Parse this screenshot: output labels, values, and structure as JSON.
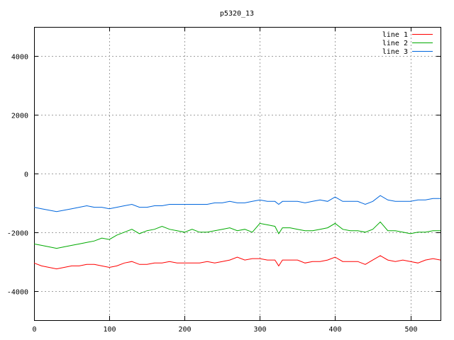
{
  "chart_data": {
    "type": "line",
    "title": "p5320_13",
    "xlabel": "",
    "ylabel": "",
    "xlim": [
      0,
      540
    ],
    "ylim": [
      -5000,
      5000
    ],
    "xticks": [
      0,
      100,
      200,
      300,
      400,
      500
    ],
    "yticks": [
      -4000,
      -2000,
      0,
      2000,
      4000
    ],
    "grid": true,
    "legend_position": "top-right",
    "x": [
      0,
      10,
      20,
      30,
      40,
      50,
      60,
      70,
      80,
      90,
      100,
      110,
      120,
      130,
      140,
      150,
      160,
      170,
      180,
      190,
      200,
      210,
      220,
      230,
      240,
      250,
      260,
      270,
      280,
      290,
      300,
      310,
      320,
      325,
      330,
      340,
      350,
      360,
      370,
      380,
      390,
      400,
      410,
      420,
      430,
      440,
      450,
      460,
      470,
      480,
      490,
      500,
      510,
      520,
      530,
      540
    ],
    "series": [
      {
        "name": "line 1",
        "color": "#ff0000",
        "values": [
          -3050,
          -3150,
          -3200,
          -3250,
          -3200,
          -3150,
          -3150,
          -3100,
          -3100,
          -3150,
          -3200,
          -3150,
          -3050,
          -3000,
          -3100,
          -3100,
          -3050,
          -3050,
          -3000,
          -3050,
          -3050,
          -3050,
          -3050,
          -3000,
          -3050,
          -3000,
          -2950,
          -2850,
          -2950,
          -2900,
          -2900,
          -2950,
          -2950,
          -3150,
          -2950,
          -2950,
          -2950,
          -3050,
          -3000,
          -3000,
          -2950,
          -2850,
          -3000,
          -3000,
          -3000,
          -3100,
          -2950,
          -2800,
          -2950,
          -3000,
          -2950,
          -3000,
          -3050,
          -2950,
          -2900,
          -2950
        ]
      },
      {
        "name": "line 2",
        "color": "#00aa00",
        "values": [
          -2400,
          -2450,
          -2500,
          -2550,
          -2500,
          -2450,
          -2400,
          -2350,
          -2300,
          -2200,
          -2250,
          -2100,
          -2000,
          -1900,
          -2050,
          -1950,
          -1900,
          -1800,
          -1900,
          -1950,
          -2000,
          -1900,
          -2000,
          -2000,
          -1950,
          -1900,
          -1850,
          -1950,
          -1900,
          -2000,
          -1700,
          -1750,
          -1800,
          -2050,
          -1850,
          -1850,
          -1900,
          -1950,
          -1950,
          -1900,
          -1850,
          -1700,
          -1900,
          -1950,
          -1950,
          -2000,
          -1900,
          -1650,
          -1950,
          -1950,
          -2000,
          -2050,
          -2000,
          -2000,
          -1950,
          -1950
        ]
      },
      {
        "name": "line 3",
        "color": "#0066dd",
        "values": [
          -1150,
          -1200,
          -1250,
          -1300,
          -1250,
          -1200,
          -1150,
          -1100,
          -1150,
          -1150,
          -1200,
          -1150,
          -1100,
          -1050,
          -1150,
          -1150,
          -1100,
          -1100,
          -1050,
          -1050,
          -1050,
          -1050,
          -1050,
          -1050,
          -1000,
          -1000,
          -950,
          -1000,
          -1000,
          -950,
          -900,
          -950,
          -950,
          -1050,
          -950,
          -950,
          -950,
          -1000,
          -950,
          -900,
          -950,
          -800,
          -950,
          -950,
          -950,
          -1050,
          -950,
          -750,
          -900,
          -950,
          -950,
          -950,
          -900,
          -900,
          -850,
          -850
        ]
      }
    ]
  }
}
